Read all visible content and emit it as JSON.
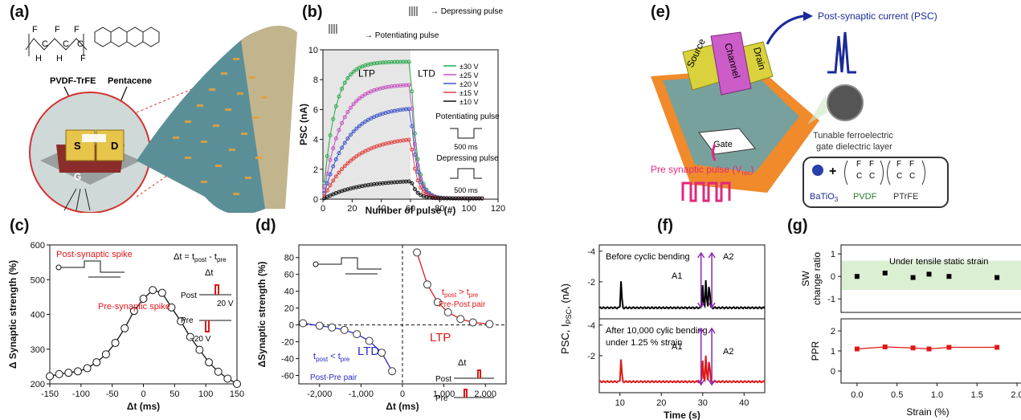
{
  "panel_labels": [
    "(a)",
    "(b)",
    "(c)",
    "(d)",
    "(e)",
    "(f)",
    "(g)"
  ],
  "panel_a": {
    "polymer_label": "PVDF-TrFE",
    "semiconductor_label": "Pentacene",
    "source_label": "S",
    "drain_label": "D",
    "gate_label": "G",
    "chem_atoms": [
      "F",
      "F",
      "F",
      "C",
      "C",
      "C",
      "H",
      "H",
      "F"
    ]
  },
  "panel_e": {
    "source_label": "Source",
    "channel_label": "Channel",
    "drain_label": "Drain",
    "gate_label": "Gate",
    "psc_label": "Post-synaptic current (PSC)",
    "pre_pulse_label": "Pre synaptic pulse (V",
    "pre_pulse_sub": "rec",
    "pre_pulse_end": ")",
    "dielectric_line1": "Tunable ferroelectric",
    "dielectric_line2": "gate dielectric layer",
    "bto_label": "BaTiO",
    "bto_sub": "3",
    "pvdf_label": "PVDF",
    "ptrfe_label": "PTrFE",
    "plus_sign": "+",
    "formula_atoms": [
      "F",
      "F",
      "C",
      "C",
      "F",
      "F",
      "C",
      "C"
    ]
  },
  "chart_data": [
    {
      "panel": "(b)",
      "type": "line",
      "xlabel": "Number of pulse (#)",
      "ylabel": "PSC (nA)",
      "xlim": [
        0,
        120
      ],
      "ylim": [
        0,
        10
      ],
      "xticks": [
        0,
        20,
        40,
        60,
        80,
        100,
        120
      ],
      "yticks": [
        0,
        2,
        4,
        6,
        8,
        10
      ],
      "regions": [
        "LTP",
        "LTD"
      ],
      "top_annotations": [
        "Potentiating pulse",
        "Depressing pulse"
      ],
      "legend_position": "right",
      "inset_labels": [
        "Potentiating pulse",
        "500 ms",
        "Depressing pulse",
        "500 ms"
      ],
      "series": [
        {
          "name": "±30 V",
          "color": "#2aa84a",
          "plateau": 9.2
        },
        {
          "name": "±25 V",
          "color": "#c552c1",
          "plateau": 7.7
        },
        {
          "name": "±20 V",
          "color": "#3d55c8",
          "plateau": 6.2
        },
        {
          "name": "±15 V",
          "color": "#e0403d",
          "plateau": 4.2
        },
        {
          "name": "±10 V",
          "color": "#111111",
          "plateau": 1.3
        }
      ]
    },
    {
      "panel": "(c)",
      "type": "scatter",
      "xlabel": "Δt (ms)",
      "ylabel": "Δ Synaptic strength (%)",
      "xlim": [
        -150,
        150
      ],
      "ylim": [
        200,
        600
      ],
      "xticks": [
        -150,
        -100,
        -50,
        0,
        50,
        100,
        150
      ],
      "yticks": [
        200,
        300,
        400,
        500,
        600
      ],
      "annotations": [
        "Post-synaptic spike",
        "Pre-synaptic spike",
        "Δt = t",
        "post",
        " - t",
        "pre",
        "Δt",
        "Post",
        "Pre",
        "20 V",
        "−20 V"
      ],
      "x": [
        -150,
        -135,
        -120,
        -105,
        -90,
        -75,
        -60,
        -45,
        -30,
        -15,
        0,
        15,
        30,
        45,
        60,
        75,
        90,
        105,
        120,
        135,
        150
      ],
      "y": [
        222,
        228,
        232,
        236,
        245,
        262,
        285,
        318,
        360,
        410,
        445,
        470,
        462,
        420,
        380,
        335,
        298,
        262,
        235,
        215,
        200
      ]
    },
    {
      "panel": "(d)",
      "type": "scatter",
      "xlabel": "Δt (ms)",
      "ylabel": "ΔSynaptic strength (%)",
      "xlim": [
        -2500,
        2500
      ],
      "ylim": [
        -70,
        95
      ],
      "xticks": [
        -2000,
        -1000,
        0,
        1000,
        2000
      ],
      "xtick_labels": [
        "-2,000",
        "-1,000",
        "0",
        "1,000",
        "2,000"
      ],
      "yticks": [
        -60,
        -40,
        -20,
        0,
        20,
        40,
        60,
        80
      ],
      "region_labels": [
        "LTP",
        "LTD",
        "Post-Pre pair",
        "Pre-Post pair"
      ],
      "condition_ltp": [
        "t",
        "post",
        " > t",
        "pre"
      ],
      "condition_ltd": [
        "t",
        "post",
        " < t",
        "pre"
      ],
      "inset_labels": [
        "Δt",
        "Post",
        "Pre"
      ],
      "x": [
        -2400,
        -2000,
        -1700,
        -1400,
        -1100,
        -800,
        -500,
        -250,
        350,
        600,
        850,
        1100,
        1400,
        1700,
        2100
      ],
      "y": [
        2,
        -1,
        -3,
        -6,
        -11,
        -19,
        -33,
        -55,
        86,
        48,
        27,
        15,
        7,
        3,
        1
      ]
    },
    {
      "panel": "(f)",
      "type": "line",
      "xlabel": "Time (s)",
      "ylabel_parts": [
        "PSC, I",
        "PSC",
        ", (nA)"
      ],
      "xlim": [
        5,
        45
      ],
      "xticks": [
        10,
        20,
        30,
        40
      ],
      "yticks_top": [
        "-4",
        "-2"
      ],
      "yticks_bottom": [
        "-4",
        "-2"
      ],
      "annotations": [
        "Before cyclic bending",
        "After 10,000 cylic bending",
        "under 1.25 % strain",
        "A1",
        "A2",
        "A1",
        "A2"
      ],
      "series": [
        {
          "name": "Before cyclic bending",
          "color": "#000000",
          "baseline": -0.3,
          "peaks": [
            [
              10.3,
              -2.2
            ],
            [
              30.0,
              -1.8
            ],
            [
              30.8,
              -2.3
            ],
            [
              31.6,
              -2.2
            ]
          ]
        },
        {
          "name": "After 10,000 cylic bending",
          "color": "#e01818",
          "baseline": -0.3,
          "peaks": [
            [
              10.3,
              -1.9
            ],
            [
              30.0,
              -1.7
            ],
            [
              30.8,
              -2.2
            ],
            [
              31.6,
              -2.1
            ]
          ]
        }
      ]
    },
    {
      "panel": "(g)",
      "type": "scatter",
      "xlabel": "Strain (%)",
      "xticks": [
        0.0,
        0.5,
        1.0,
        1.5,
        2.0
      ],
      "xtick_labels": [
        "0.0",
        "0.5",
        "1.0",
        "1.5",
        "2.0"
      ],
      "subplots": [
        {
          "ylabel_line1": "SW",
          "ylabel_line2": "change ratio",
          "yticks": [
            -1,
            0,
            1
          ],
          "ylim": [
            -1.6,
            1.4
          ],
          "title": "Under tensile static strain",
          "band": [
            -0.6,
            0.7
          ],
          "color": "#000000",
          "x": [
            0.0,
            0.35,
            0.7,
            0.9,
            1.15,
            1.75
          ],
          "y": [
            0.0,
            0.15,
            -0.05,
            0.1,
            0.0,
            -0.05
          ]
        },
        {
          "ylabel": "PPR",
          "yticks": [
            0,
            1,
            2
          ],
          "ylim": [
            -0.6,
            2.6
          ],
          "color": "#e01818",
          "x": [
            0.0,
            0.35,
            0.7,
            0.9,
            1.15,
            1.75
          ],
          "y": [
            1.1,
            1.2,
            1.15,
            1.1,
            1.18,
            1.18
          ]
        }
      ]
    }
  ]
}
